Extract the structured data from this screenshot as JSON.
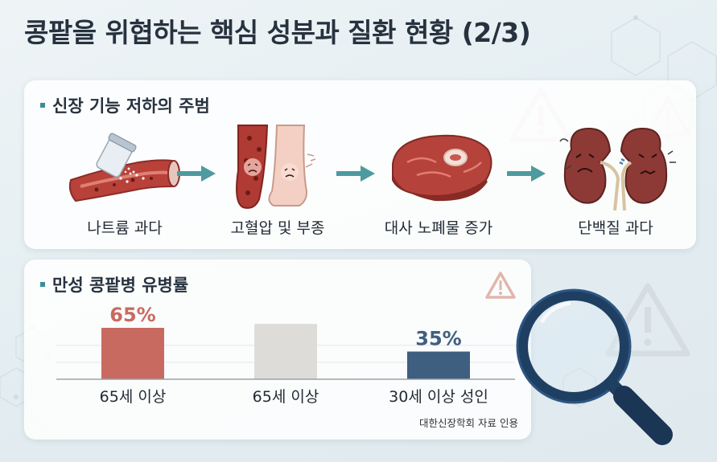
{
  "title": "콩팥을 위협하는 핵심 성분과 질환 현황 (2/3)",
  "flow_section": {
    "title": "신장 기능 저하의 주범",
    "steps": [
      {
        "label": "나트륨 과다",
        "icon": "salt-shaker-blood-vessel-icon"
      },
      {
        "label": "고혈압 및 부종",
        "icon": "blood-pressure-edema-icon"
      },
      {
        "label": "대사 노폐물 증가",
        "icon": "red-meat-icon"
      },
      {
        "label": "단백질 과다",
        "icon": "kidney-icon"
      }
    ]
  },
  "chart_section": {
    "title": "만성 콩팥병 유병률",
    "source": "대한신장학회 자료 인용"
  },
  "chart_data": {
    "type": "bar",
    "categories": [
      "65세 이상",
      "65세 이상",
      "30세 이상 성인"
    ],
    "values": [
      65,
      null,
      35
    ],
    "value_labels": [
      "65%",
      "",
      "35%"
    ],
    "colors": [
      "#c96a60",
      "#dddcd8",
      "#3f5f80"
    ],
    "ylim": [
      0,
      65
    ],
    "title": "",
    "xlabel": "",
    "ylabel": ""
  },
  "colors": {
    "accent": "#3a8e95",
    "bar_red": "#c96a60",
    "bar_navy": "#3f5f80",
    "bar_grey": "#dddcd8"
  }
}
